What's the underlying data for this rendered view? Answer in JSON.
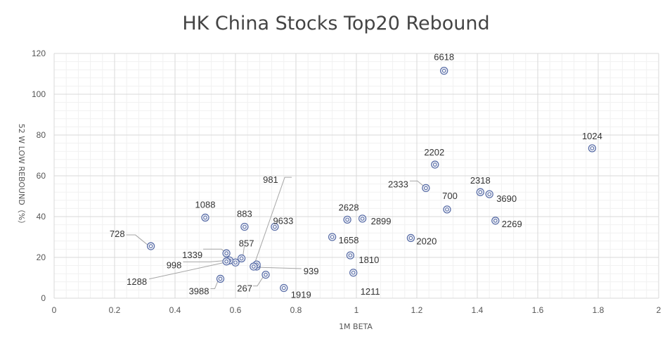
{
  "chart_data": {
    "type": "scatter",
    "title": "HK China Stocks Top20 Rebound",
    "xlabel": "1M BETA",
    "ylabel": "52 W LOW REBOUND（%）",
    "xlim": [
      0,
      2
    ],
    "ylim": [
      0,
      120
    ],
    "x_ticks": [
      "0",
      "0.2",
      "0.4",
      "0.6",
      "0.8",
      "1",
      "1.2",
      "1.4",
      "1.6",
      "1.8",
      "2"
    ],
    "y_ticks": [
      "0",
      "20",
      "40",
      "60",
      "80",
      "100",
      "120"
    ],
    "grid": true,
    "marker_color": "#5b6fa8",
    "highlight_color": "#e00000",
    "points": [
      {
        "label": "6618",
        "x": 1.29,
        "y": 111.5
      },
      {
        "label": "1024",
        "x": 1.78,
        "y": 73.5
      },
      {
        "label": "2202",
        "x": 1.26,
        "y": 65.5
      },
      {
        "label": "2318",
        "x": 1.41,
        "y": 52
      },
      {
        "label": "3690",
        "x": 1.44,
        "y": 51
      },
      {
        "label": "2333",
        "x": 1.23,
        "y": 54
      },
      {
        "label": "700",
        "x": 1.3,
        "y": 43.5,
        "highlight": true
      },
      {
        "label": "2269",
        "x": 1.46,
        "y": 38
      },
      {
        "label": "2020",
        "x": 1.18,
        "y": 29.5
      },
      {
        "label": "2628",
        "x": 0.97,
        "y": 38.5
      },
      {
        "label": "2899",
        "x": 1.02,
        "y": 39
      },
      {
        "label": "1658",
        "x": 0.92,
        "y": 30
      },
      {
        "label": "1810",
        "x": 0.98,
        "y": 21
      },
      {
        "label": "1211",
        "x": 0.99,
        "y": 12.5
      },
      {
        "label": "1088",
        "x": 0.5,
        "y": 39.5
      },
      {
        "label": "883",
        "x": 0.63,
        "y": 35
      },
      {
        "label": "9633",
        "x": 0.73,
        "y": 35
      },
      {
        "label": "728",
        "x": 0.32,
        "y": 25.5
      },
      {
        "label": "1339",
        "x": 0.57,
        "y": 22
      },
      {
        "label": "857",
        "x": 0.62,
        "y": 19.5
      },
      {
        "label": "998",
        "x": 0.58,
        "y": 18.5
      },
      {
        "label": "1288",
        "x": 0.57,
        "y": 18
      },
      {
        "label": "981",
        "x": 0.67,
        "y": 16.5
      },
      {
        "label": "939",
        "x": 0.66,
        "y": 15.5
      },
      {
        "label": "3988",
        "x": 0.55,
        "y": 9.5
      },
      {
        "label": "267",
        "x": 0.7,
        "y": 11.5
      },
      {
        "label": "1919",
        "x": 0.76,
        "y": 5
      }
    ],
    "unlabeled_points": [
      {
        "x": 0.6,
        "y": 17.5
      },
      {
        "x": 0.67,
        "y": 15.5
      }
    ]
  }
}
